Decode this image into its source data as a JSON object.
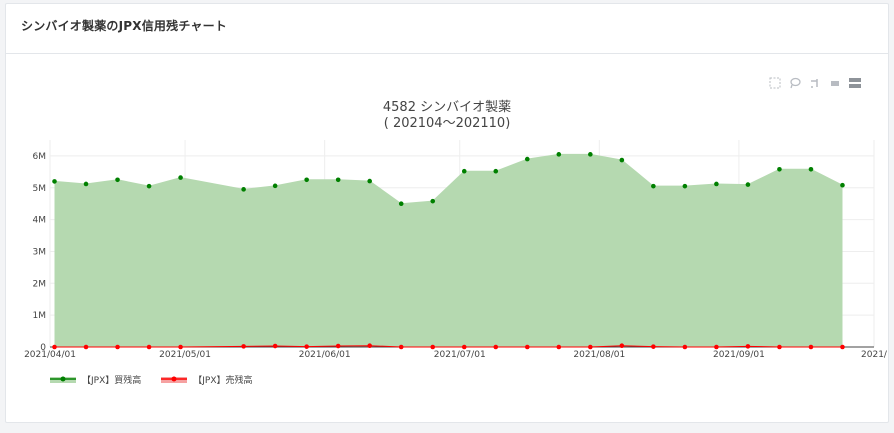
{
  "panel": {
    "title": "シンバイオ製薬のJPX信用残チャート"
  },
  "toolbar": {
    "icons": [
      "box-select-icon",
      "lasso-select-icon",
      "pan-icon",
      "compare-hover-icon",
      "closest-hover-icon"
    ]
  },
  "colors": {
    "buy": "#008000",
    "buy_fill": "#b5d9b0",
    "sell": "#ff0000"
  },
  "chart_data": {
    "type": "area",
    "title": "4582 シンバイオ製薬",
    "subtitle": "( 202104～202110)",
    "xlabel": "",
    "ylabel": "",
    "x_ticks": [
      "2021/04/01",
      "2021/05/01",
      "2021/06/01",
      "2021/07/01",
      "2021/08/01",
      "2021/09/01",
      "2021/"
    ],
    "y_ticks": [
      "0",
      "1M",
      "2M",
      "3M",
      "4M",
      "5M",
      "6M"
    ],
    "xlim": [
      "2021-04-01",
      "2021-10-01"
    ],
    "ylim": [
      0,
      6500000
    ],
    "grid": true,
    "legend_position": "bottom-left",
    "x": [
      "2021-04-02",
      "2021-04-09",
      "2021-04-16",
      "2021-04-23",
      "2021-04-30",
      "2021-05-14",
      "2021-05-21",
      "2021-05-28",
      "2021-06-04",
      "2021-06-11",
      "2021-06-18",
      "2021-06-25",
      "2021-07-02",
      "2021-07-09",
      "2021-07-16",
      "2021-07-23",
      "2021-07-30",
      "2021-08-06",
      "2021-08-13",
      "2021-08-20",
      "2021-08-27",
      "2021-09-03",
      "2021-09-10",
      "2021-09-17",
      "2021-09-24"
    ],
    "series": [
      {
        "name": "【JPX】買残高",
        "values": [
          5200000,
          5120000,
          5250000,
          5050000,
          5320000,
          4950000,
          5060000,
          5250000,
          5250000,
          5210000,
          4500000,
          4580000,
          5520000,
          5520000,
          5900000,
          6050000,
          6050000,
          5870000,
          5050000,
          5050000,
          5120000,
          5100000,
          5580000,
          5580000,
          5080000
        ]
      },
      {
        "name": "【JPX】売残高",
        "values": [
          0,
          0,
          0,
          0,
          0,
          20000,
          30000,
          10000,
          30000,
          40000,
          0,
          0,
          0,
          0,
          0,
          0,
          0,
          40000,
          10000,
          0,
          0,
          20000,
          0,
          0,
          0
        ]
      }
    ]
  }
}
